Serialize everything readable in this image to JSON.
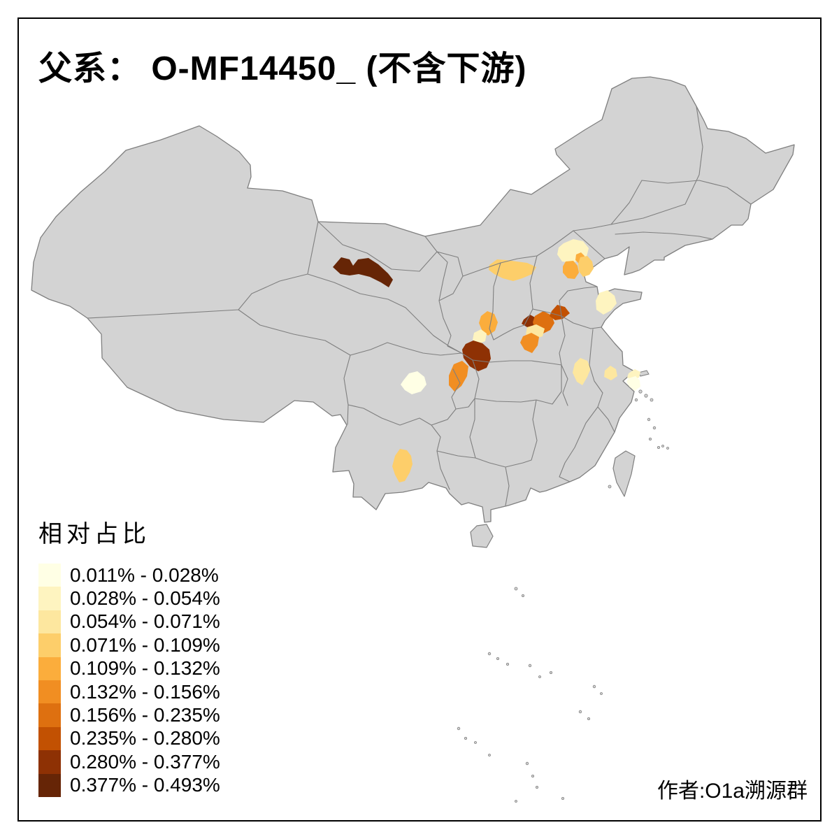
{
  "title": "父系：  O-MF14450_ (不含下游)",
  "legend": {
    "title": "相对占比",
    "classes": [
      {
        "label": "0.011% - 0.028%",
        "color": "#FFFFE5"
      },
      {
        "label": "0.028% - 0.054%",
        "color": "#FEF4C0"
      },
      {
        "label": "0.054% - 0.071%",
        "color": "#FDE79F"
      },
      {
        "label": "0.071% - 0.109%",
        "color": "#FDCE6A"
      },
      {
        "label": "0.109% - 0.132%",
        "color": "#FBAD3C"
      },
      {
        "label": "0.132% - 0.156%",
        "color": "#F18E22"
      },
      {
        "label": "0.156% - 0.235%",
        "color": "#DE7010"
      },
      {
        "label": "0.235% - 0.280%",
        "color": "#C25102"
      },
      {
        "label": "0.280% - 0.377%",
        "color": "#8E3104"
      },
      {
        "label": "0.377% - 0.493%",
        "color": "#662506"
      }
    ]
  },
  "attribution": "作者:O1a溯源群",
  "map": {
    "land_fill": "#D3D3D3",
    "border_color": "#7F7F7F",
    "background": "#FFFFFF",
    "frame_color": "#000000",
    "patches": [
      {
        "name": "hexi-corridor",
        "class_index": 9
      },
      {
        "name": "north-shanxi",
        "class_index": 3
      },
      {
        "name": "beijing-outer",
        "class_index": 1
      },
      {
        "name": "beijing-city-knob",
        "class_index": 4
      },
      {
        "name": "tianjin-area",
        "class_index": 3
      },
      {
        "name": "beijing-southwest",
        "class_index": 4
      },
      {
        "name": "shandong-west",
        "class_index": 1
      },
      {
        "name": "shaanxi-north",
        "class_index": 4
      },
      {
        "name": "shaanxi-west-pale",
        "class_index": 1
      },
      {
        "name": "henan-northwest-dark",
        "class_index": 8
      },
      {
        "name": "henan-north-orange",
        "class_index": 6
      },
      {
        "name": "henan-northeast-arm",
        "class_index": 7
      },
      {
        "name": "henan-center-pale",
        "class_index": 2
      },
      {
        "name": "henan-south-orange",
        "class_index": 5
      },
      {
        "name": "gansu-southeast-dark",
        "class_index": 8
      },
      {
        "name": "gansu-south-orange",
        "class_index": 5
      },
      {
        "name": "chengdu-pale",
        "class_index": 0
      },
      {
        "name": "kunming",
        "class_index": 3
      },
      {
        "name": "hefei",
        "class_index": 2
      },
      {
        "name": "nanjing-area",
        "class_index": 2
      },
      {
        "name": "suzhou-area",
        "class_index": 1
      },
      {
        "name": "shanghai-south-pale",
        "class_index": 0
      }
    ]
  }
}
